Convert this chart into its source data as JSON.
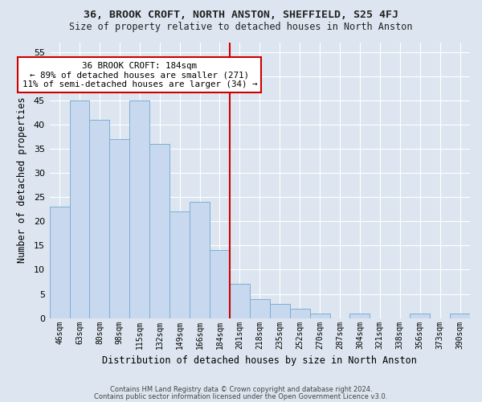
{
  "title": "36, BROOK CROFT, NORTH ANSTON, SHEFFIELD, S25 4FJ",
  "subtitle": "Size of property relative to detached houses in North Anston",
  "xlabel": "Distribution of detached houses by size in North Anston",
  "ylabel": "Number of detached properties",
  "categories": [
    "46sqm",
    "63sqm",
    "80sqm",
    "98sqm",
    "115sqm",
    "132sqm",
    "149sqm",
    "166sqm",
    "184sqm",
    "201sqm",
    "218sqm",
    "235sqm",
    "252sqm",
    "270sqm",
    "287sqm",
    "304sqm",
    "321sqm",
    "338sqm",
    "356sqm",
    "373sqm",
    "390sqm"
  ],
  "values": [
    23,
    45,
    41,
    37,
    45,
    36,
    22,
    24,
    14,
    7,
    4,
    3,
    2,
    1,
    0,
    1,
    0,
    0,
    1,
    0,
    1
  ],
  "bar_color": "#c8d8ee",
  "bar_edge_color": "#7bafd4",
  "marker_index": 8,
  "vline_color": "#cc0000",
  "annotation_box_edge": "#cc0000",
  "annotation_line1": "36 BROOK CROFT: 184sqm",
  "annotation_line2": "← 89% of detached houses are smaller (271)",
  "annotation_line3": "11% of semi-detached houses are larger (34) →",
  "ylim": [
    0,
    57
  ],
  "yticks": [
    0,
    5,
    10,
    15,
    20,
    25,
    30,
    35,
    40,
    45,
    50,
    55
  ],
  "bg_color": "#dde6f0",
  "fig_bg_color": "#dde6f0",
  "grid_color": "#ffffff",
  "footer_line1": "Contains HM Land Registry data © Crown copyright and database right 2024.",
  "footer_line2": "Contains public sector information licensed under the Open Government Licence v3.0."
}
